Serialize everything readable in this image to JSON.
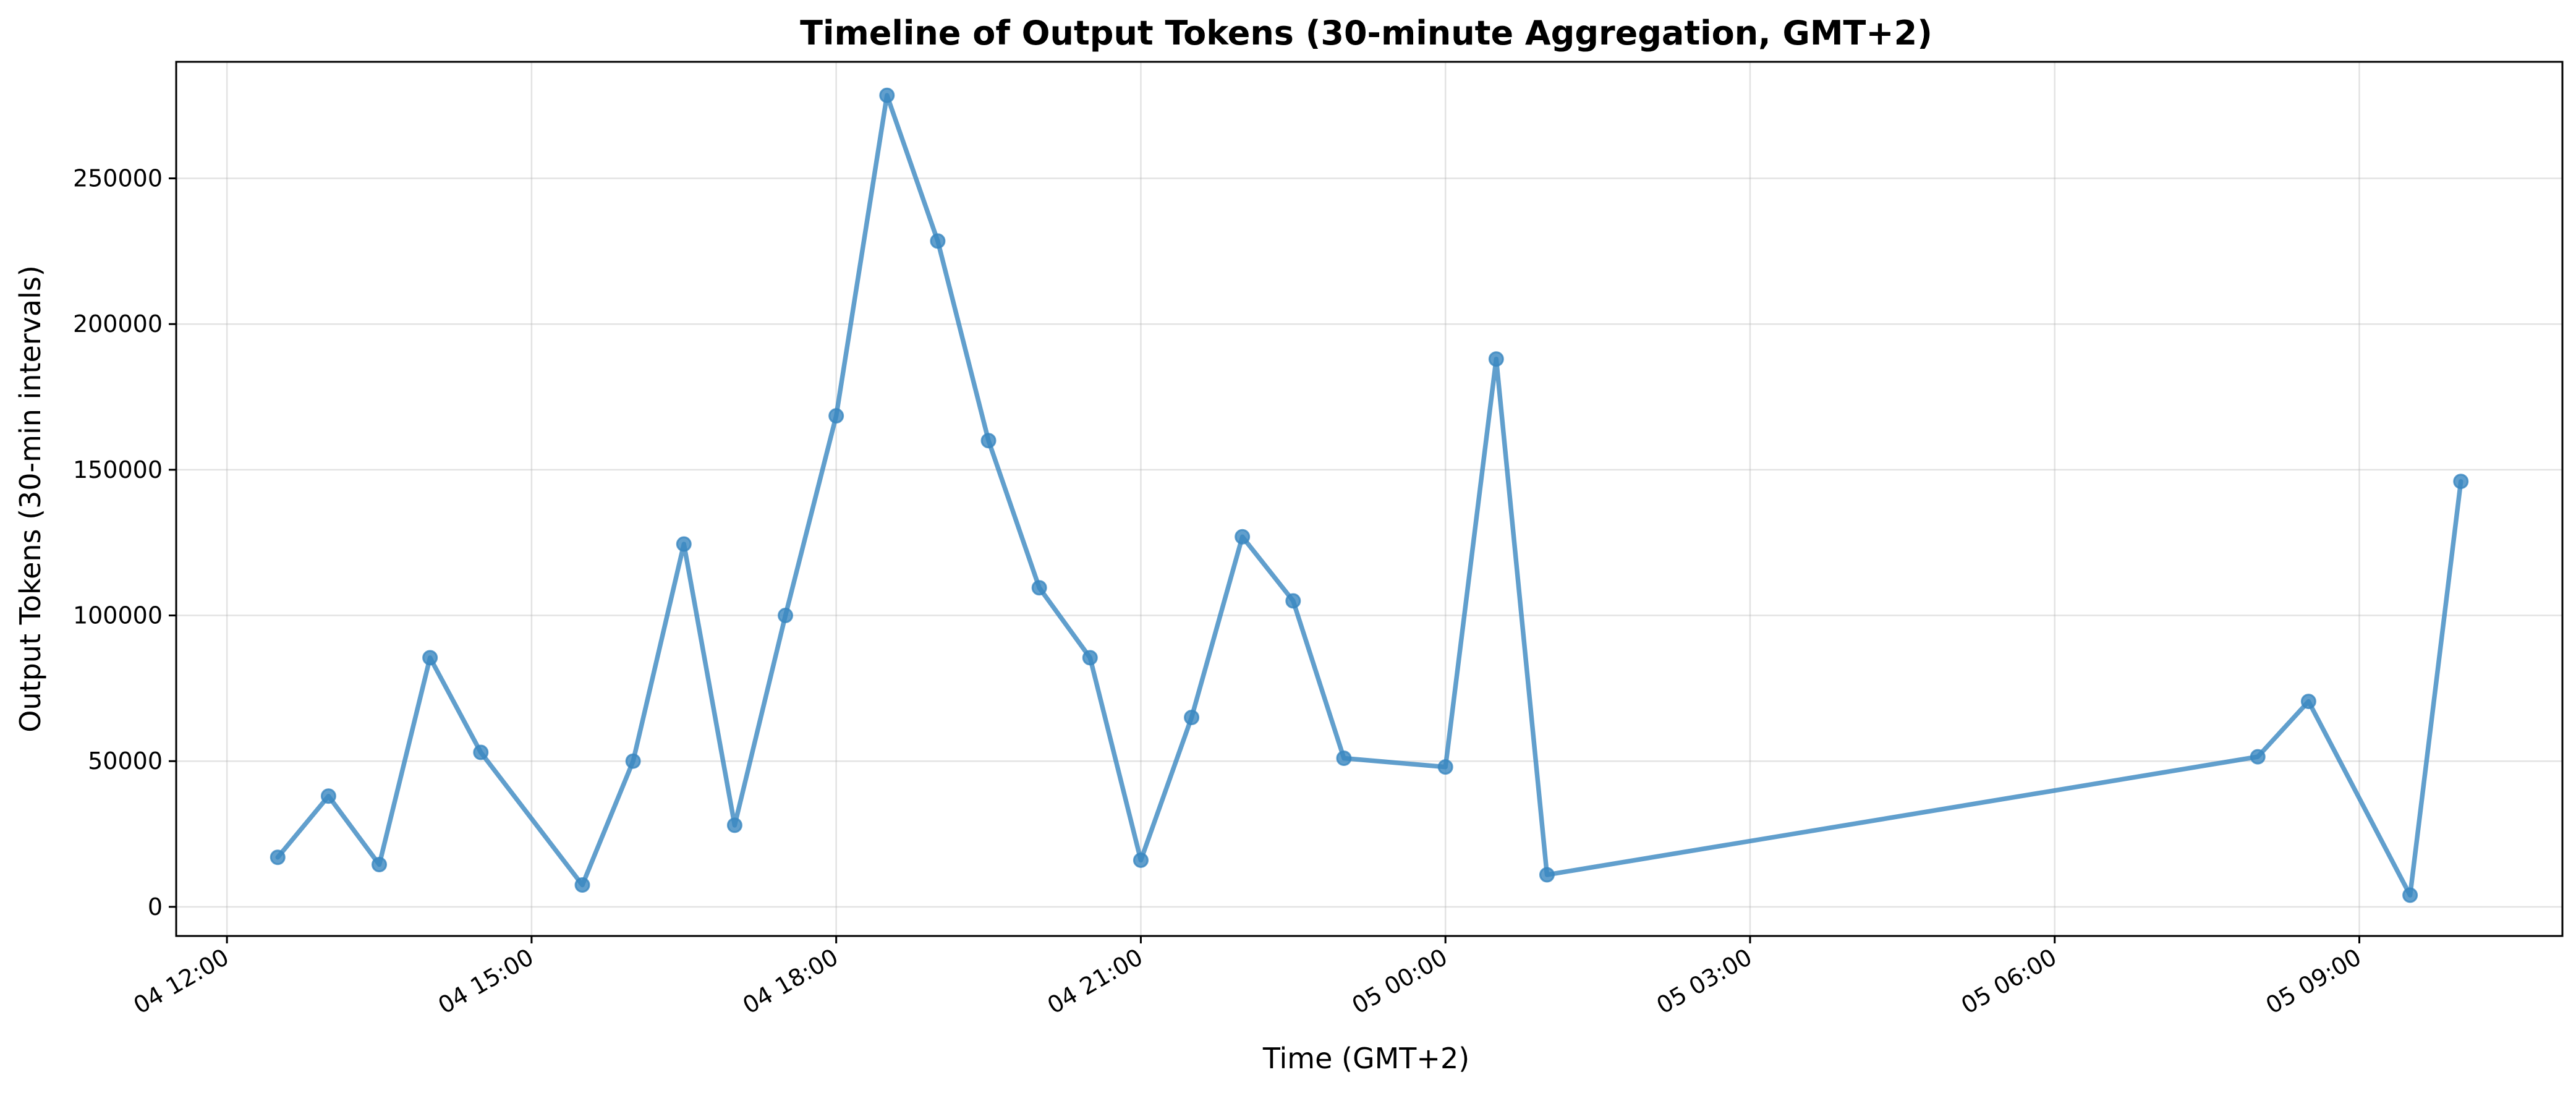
{
  "chart_data": {
    "type": "line",
    "title": "Timeline of Output Tokens (30-minute Aggregation, GMT+2)",
    "xlabel": "Time (GMT+2)",
    "ylabel": "Output Tokens (30-min intervals)",
    "color": "#3a87c0",
    "grid": true,
    "x_ticks": [
      {
        "t": "04 12:00",
        "label": "04 12:00"
      },
      {
        "t": "04 15:00",
        "label": "04 15:00"
      },
      {
        "t": "04 18:00",
        "label": "04 18:00"
      },
      {
        "t": "04 21:00",
        "label": "04 21:00"
      },
      {
        "t": "05 00:00",
        "label": "05 00:00"
      },
      {
        "t": "05 03:00",
        "label": "05 03:00"
      },
      {
        "t": "05 06:00",
        "label": "05 06:00"
      },
      {
        "t": "05 09:00",
        "label": "05 09:00"
      }
    ],
    "y_ticks": [
      0,
      50000,
      100000,
      150000,
      200000,
      250000
    ],
    "xlim": [
      "04 11:30",
      "05 11:00"
    ],
    "ylim": [
      -10000,
      290000
    ],
    "points": [
      {
        "t": "04 12:30",
        "value": 17000
      },
      {
        "t": "04 13:00",
        "value": 38000
      },
      {
        "t": "04 13:30",
        "value": 14500
      },
      {
        "t": "04 14:00",
        "value": 85500
      },
      {
        "t": "04 14:30",
        "value": 53000
      },
      {
        "t": "04 15:30",
        "value": 7500
      },
      {
        "t": "04 16:00",
        "value": 50000
      },
      {
        "t": "04 16:30",
        "value": 124500
      },
      {
        "t": "04 17:00",
        "value": 28000
      },
      {
        "t": "04 17:30",
        "value": 100000
      },
      {
        "t": "04 18:00",
        "value": 168500
      },
      {
        "t": "04 18:30",
        "value": 278500
      },
      {
        "t": "04 19:00",
        "value": 228500
      },
      {
        "t": "04 19:30",
        "value": 160000
      },
      {
        "t": "04 20:00",
        "value": 109500
      },
      {
        "t": "04 20:30",
        "value": 85500
      },
      {
        "t": "04 21:00",
        "value": 16000
      },
      {
        "t": "04 21:30",
        "value": 65000
      },
      {
        "t": "04 22:00",
        "value": 127000
      },
      {
        "t": "04 22:30",
        "value": 105000
      },
      {
        "t": "04 23:00",
        "value": 51000
      },
      {
        "t": "05 00:00",
        "value": 48000
      },
      {
        "t": "05 00:30",
        "value": 188000
      },
      {
        "t": "05 01:00",
        "value": 11000
      },
      {
        "t": "05 08:00",
        "value": 51500
      },
      {
        "t": "05 08:30",
        "value": 70500
      },
      {
        "t": "05 09:30",
        "value": 4000
      },
      {
        "t": "05 10:00",
        "value": 146000
      }
    ]
  }
}
